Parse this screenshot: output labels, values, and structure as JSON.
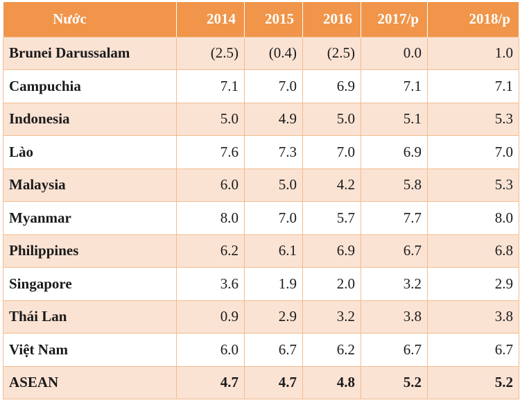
{
  "table": {
    "header": {
      "country_label": "Nước",
      "years": [
        "2014",
        "2015",
        "2016",
        "2017/p",
        "2018/p"
      ]
    },
    "rows": [
      {
        "country": "Brunei Darussalam",
        "values": [
          "(2.5)",
          "(0.4)",
          "(2.5)",
          "0.0",
          "1.0"
        ]
      },
      {
        "country": "Campuchia",
        "values": [
          "7.1",
          "7.0",
          "6.9",
          "7.1",
          "7.1"
        ]
      },
      {
        "country": "Indonesia",
        "values": [
          "5.0",
          "4.9",
          "5.0",
          "5.1",
          "5.3"
        ]
      },
      {
        "country": "Lào",
        "values": [
          "7.6",
          "7.3",
          "7.0",
          "6.9",
          "7.0"
        ]
      },
      {
        "country": "Malaysia",
        "values": [
          "6.0",
          "5.0",
          "4.2",
          "5.8",
          "5.3"
        ]
      },
      {
        "country": "Myanmar",
        "values": [
          "8.0",
          "7.0",
          "5.7",
          "7.7",
          "8.0"
        ]
      },
      {
        "country": "Philippines",
        "values": [
          "6.2",
          "6.1",
          "6.9",
          "6.7",
          "6.8"
        ]
      },
      {
        "country": "Singapore",
        "values": [
          "3.6",
          "1.9",
          "2.0",
          "3.2",
          "2.9"
        ]
      },
      {
        "country": "Thái Lan",
        "values": [
          "0.9",
          "2.9",
          "3.2",
          "3.8",
          "3.8"
        ]
      },
      {
        "country": "Việt Nam",
        "values": [
          "6.0",
          "6.7",
          "6.2",
          "6.7",
          "6.7"
        ]
      },
      {
        "country": "ASEAN",
        "values": [
          "4.7",
          "4.7",
          "4.8",
          "5.2",
          "5.2"
        ]
      }
    ],
    "colors": {
      "header_bg": "#f0954a",
      "header_text": "#ffffff",
      "band_row_bg": "#fbe3d4",
      "plain_row_bg": "#ffffff",
      "grid_line": "#f3bc8d"
    }
  }
}
